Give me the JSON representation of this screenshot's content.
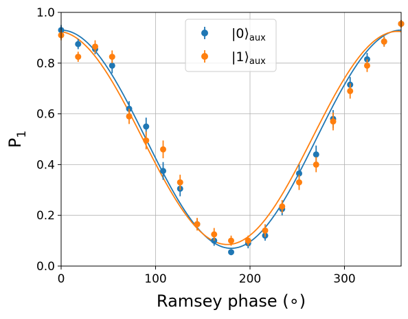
{
  "chart_data": {
    "type": "scatter",
    "title": "",
    "xlabel": "Ramsey phase (∘)",
    "ylabel": "P",
    "ylabel_subscript": "1",
    "xlim": [
      0,
      360
    ],
    "ylim": [
      0.0,
      1.0
    ],
    "grid": true,
    "x_ticks": [
      0,
      100,
      200,
      300
    ],
    "x_tick_labels": [
      "0",
      "100",
      "200",
      "300"
    ],
    "y_ticks": [
      0.0,
      0.2,
      0.4,
      0.6,
      0.8,
      1.0
    ],
    "y_tick_labels": [
      "0.0",
      "0.2",
      "0.4",
      "0.6",
      "0.8",
      "1.0"
    ],
    "legend_position": "top-center",
    "series": [
      {
        "name": "|0⟩",
        "subscript": "aux",
        "color": "#1f77b4",
        "x": [
          0,
          18,
          36,
          54,
          72,
          90,
          108,
          126,
          144,
          162,
          180,
          198,
          216,
          234,
          252,
          270,
          288,
          306,
          324,
          342,
          360
        ],
        "y": [
          0.93,
          0.875,
          0.855,
          0.79,
          0.62,
          0.55,
          0.375,
          0.305,
          0.165,
          0.1,
          0.055,
          0.09,
          0.12,
          0.225,
          0.365,
          0.44,
          0.58,
          0.715,
          0.815,
          0.885,
          0.955
        ],
        "yerr": [
          0.02,
          0.02,
          0.02,
          0.03,
          0.03,
          0.035,
          0.035,
          0.03,
          0.02,
          0.02,
          0.012,
          0.02,
          0.02,
          0.025,
          0.035,
          0.035,
          0.035,
          0.03,
          0.025,
          0.02,
          0.015
        ],
        "fit": {
          "amplitude": 0.43,
          "offset": 0.5,
          "phase_deg": 0
        }
      },
      {
        "name": "|1⟩",
        "subscript": "aux",
        "color": "#ff7f0e",
        "x": [
          0,
          18,
          36,
          54,
          72,
          90,
          108,
          126,
          144,
          162,
          180,
          198,
          216,
          234,
          252,
          270,
          288,
          306,
          324,
          342,
          360
        ],
        "y": [
          0.91,
          0.825,
          0.865,
          0.825,
          0.59,
          0.495,
          0.46,
          0.33,
          0.165,
          0.125,
          0.1,
          0.1,
          0.14,
          0.235,
          0.33,
          0.4,
          0.57,
          0.69,
          0.79,
          0.885,
          0.955
        ],
        "yerr": [
          0.02,
          0.02,
          0.025,
          0.025,
          0.03,
          0.035,
          0.035,
          0.03,
          0.025,
          0.025,
          0.02,
          0.02,
          0.025,
          0.025,
          0.03,
          0.03,
          0.035,
          0.03,
          0.025,
          0.02,
          0.015
        ],
        "fit": {
          "amplitude": 0.42,
          "offset": 0.505,
          "phase_deg": -4
        }
      }
    ]
  }
}
